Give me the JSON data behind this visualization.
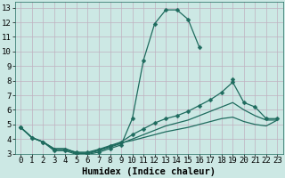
{
  "xlabel": "Humidex (Indice chaleur)",
  "bg_color": "#cce8e4",
  "line_color": "#1e6b5e",
  "grid_color": "#c0b0c0",
  "xlim": [
    -0.5,
    23.5
  ],
  "ylim": [
    3,
    13.4
  ],
  "xticks": [
    0,
    1,
    2,
    3,
    4,
    5,
    6,
    7,
    8,
    9,
    10,
    11,
    12,
    13,
    14,
    15,
    16,
    17,
    18,
    19,
    20,
    21,
    22,
    23
  ],
  "yticks": [
    3,
    4,
    5,
    6,
    7,
    8,
    9,
    10,
    11,
    12,
    13
  ],
  "series": [
    {
      "x": [
        0,
        1,
        2,
        3,
        4,
        5,
        6,
        7,
        8,
        9,
        10,
        11,
        12,
        13,
        14,
        15,
        16,
        17,
        18,
        19,
        20,
        21,
        22,
        23
      ],
      "y": [
        4.8,
        4.1,
        3.8,
        3.2,
        3.2,
        2.95,
        2.95,
        3.1,
        3.35,
        3.6,
        5.4,
        9.4,
        11.9,
        12.85,
        12.85,
        12.2,
        10.3,
        null,
        null,
        8.1,
        null,
        null,
        null,
        null
      ],
      "has_markers": true
    },
    {
      "x": [
        0,
        1,
        2,
        3,
        4,
        5,
        6,
        7,
        8,
        9,
        10,
        11,
        12,
        13,
        14,
        15,
        16,
        17,
        18,
        19,
        20,
        21,
        22,
        23
      ],
      "y": [
        4.8,
        4.1,
        3.8,
        3.3,
        3.3,
        3.1,
        3.1,
        3.3,
        3.55,
        3.8,
        4.3,
        4.7,
        5.1,
        5.4,
        5.6,
        5.9,
        6.3,
        6.7,
        7.2,
        7.9,
        6.5,
        6.2,
        5.4,
        5.4
      ],
      "has_markers": true
    },
    {
      "x": [
        0,
        1,
        2,
        3,
        4,
        5,
        6,
        7,
        8,
        9,
        10,
        11,
        12,
        13,
        14,
        15,
        16,
        17,
        18,
        19,
        20,
        21,
        22,
        23
      ],
      "y": [
        4.8,
        4.1,
        3.8,
        3.3,
        3.3,
        3.0,
        3.0,
        3.2,
        3.45,
        3.7,
        4.0,
        4.3,
        4.6,
        4.9,
        5.1,
        5.3,
        5.6,
        5.9,
        6.2,
        6.5,
        6.0,
        5.6,
        5.3,
        5.3
      ],
      "has_markers": false
    },
    {
      "x": [
        0,
        1,
        2,
        3,
        4,
        5,
        6,
        7,
        8,
        9,
        10,
        11,
        12,
        13,
        14,
        15,
        16,
        17,
        18,
        19,
        20,
        21,
        22,
        23
      ],
      "y": [
        4.8,
        4.1,
        3.8,
        3.35,
        3.35,
        3.05,
        3.05,
        3.25,
        3.5,
        3.75,
        3.9,
        4.1,
        4.3,
        4.5,
        4.65,
        4.8,
        5.0,
        5.2,
        5.4,
        5.5,
        5.2,
        5.0,
        4.9,
        5.3
      ],
      "has_markers": false
    }
  ],
  "tick_fontsize": 6.5,
  "label_fontsize": 7.5,
  "markersize": 2.5
}
